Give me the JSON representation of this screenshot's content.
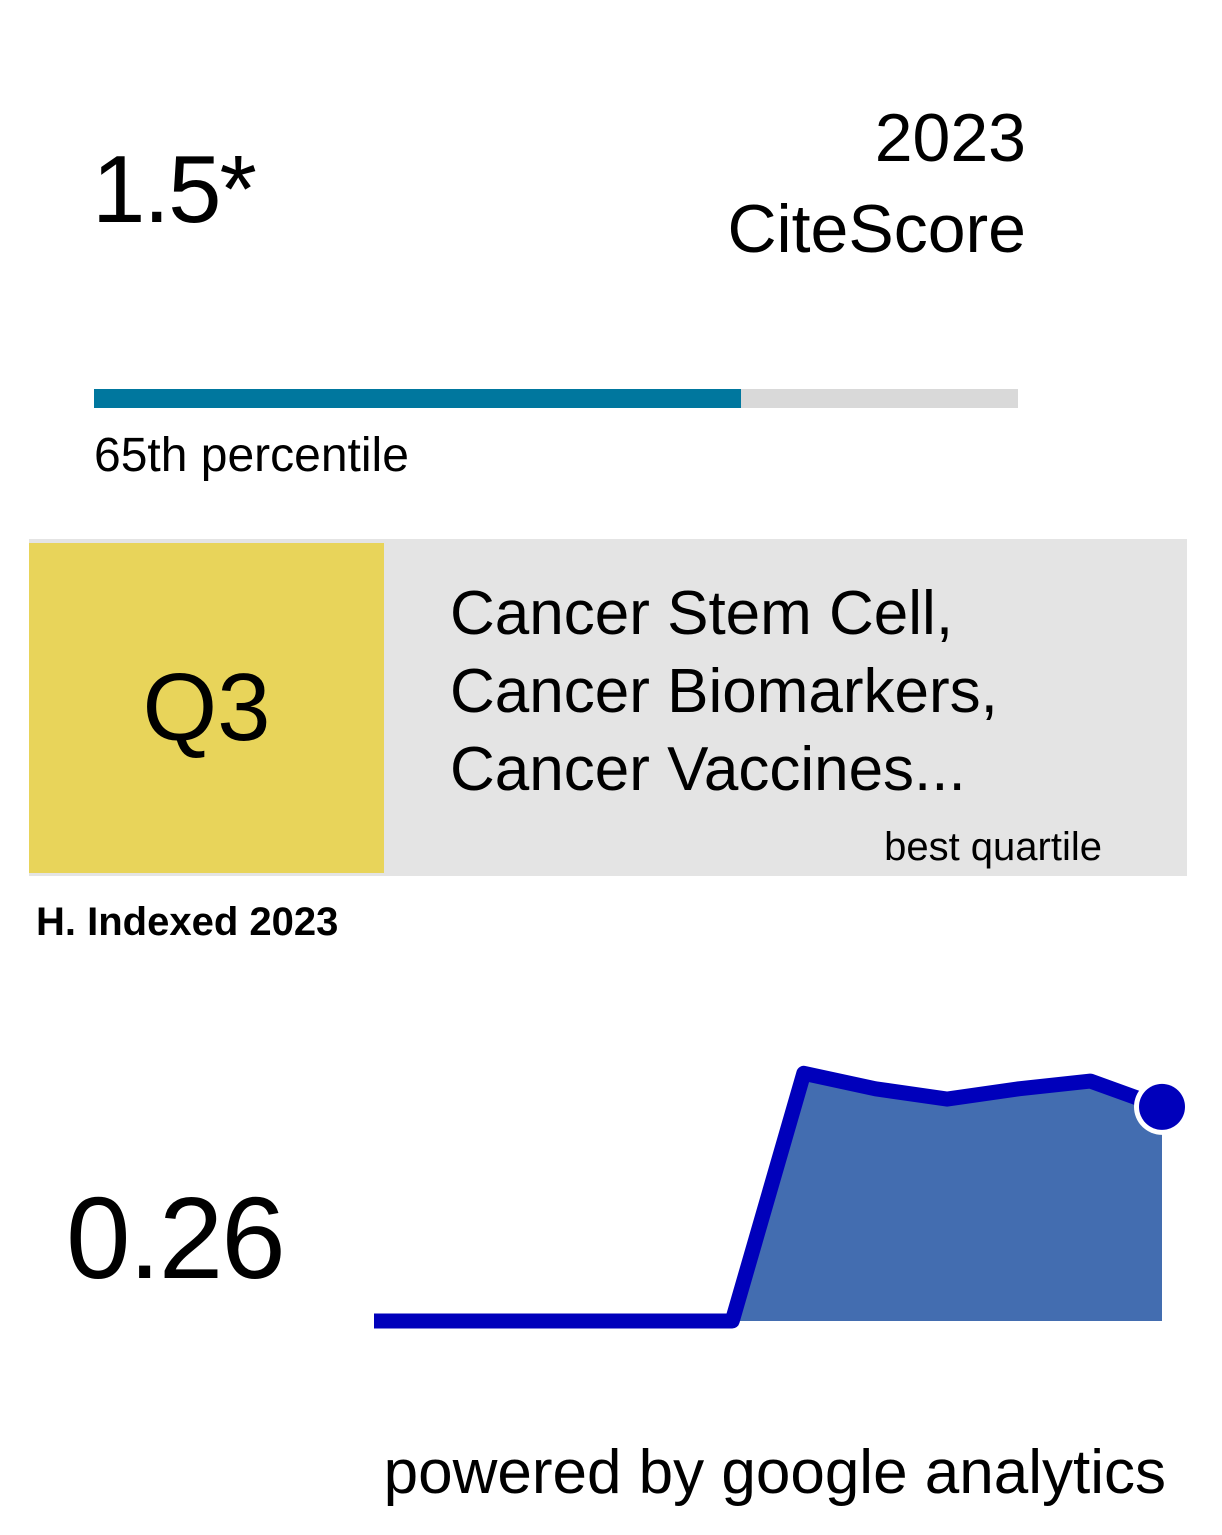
{
  "citescore": {
    "value": "1.5*",
    "year": "2023",
    "label": "CiteScore",
    "percentile_label": "65th percentile",
    "percentile_fill_fraction": 0.7,
    "colors": {
      "fill": "#00779e",
      "track": "#d9d9d9"
    }
  },
  "quartile": {
    "value": "Q3",
    "categories": [
      "Cancer Stem Cell,",
      "Cancer Biomarkers,",
      "Cancer Vaccines..."
    ],
    "caption": "best quartile",
    "colors": {
      "box": "#e8d45a",
      "panel": "#e4e4e4"
    }
  },
  "hindex": {
    "label": "H. Indexed 2023",
    "value": "0.26",
    "trend": [
      0,
      0,
      0,
      0,
      0,
      0,
      0.96,
      0.9,
      0.86,
      0.9,
      0.93,
      0.83
    ],
    "colors": {
      "line": "#0000bb",
      "area": "#436db0"
    }
  },
  "footer": {
    "powered_by": "powered by google analytics"
  }
}
